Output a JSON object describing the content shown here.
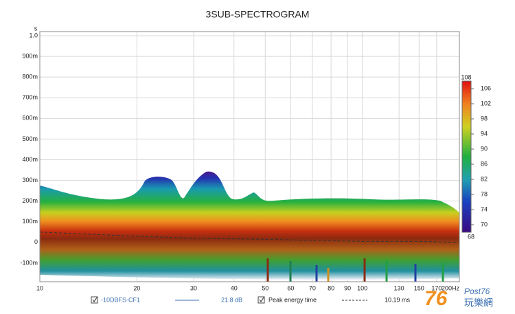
{
  "chart_data": {
    "type": "spectrogram",
    "title": "3SUB-SPECTROGRAM",
    "y_unit": "s",
    "xscale": "log",
    "xlim": [
      10,
      200
    ],
    "xticks": [
      10,
      20,
      30,
      40,
      50,
      60,
      70,
      80,
      90,
      100,
      130,
      150,
      170,
      {
        "value": 200,
        "label": "200Hz"
      }
    ],
    "ylim": [
      -0.19,
      1.02
    ],
    "yticks": [
      {
        "value": 1.0,
        "label": "1.0"
      },
      {
        "value": 0.9,
        "label": "900m"
      },
      {
        "value": 0.8,
        "label": "800m"
      },
      {
        "value": 0.7,
        "label": "700m"
      },
      {
        "value": 0.6,
        "label": "600m"
      },
      {
        "value": 0.5,
        "label": "500m"
      },
      {
        "value": 0.4,
        "label": "400m"
      },
      {
        "value": 0.3,
        "label": "300m"
      },
      {
        "value": 0.2,
        "label": "200m"
      },
      {
        "value": 0.1,
        "label": "100m"
      },
      0,
      {
        "value": -0.1,
        "label": "-100m"
      }
    ],
    "grid": true,
    "clim": [
      68,
      108
    ],
    "cticks": [
      70,
      74,
      78,
      82,
      86,
      90,
      94,
      98,
      102,
      106
    ],
    "series": [
      {
        "name": "Peak energy time",
        "color": "#333333",
        "x": [
          10,
          20,
          30,
          50,
          100,
          150,
          200
        ],
        "values": [
          0.05,
          0.03,
          0.02,
          0.015,
          0.005,
          0.005,
          0.0
        ]
      }
    ],
    "legend": {
      "trace_name": "-10DBFS-CF1",
      "trace_value": "21.8 dB",
      "peak_label": "Peak energy time",
      "peak_value": "10.19 ms"
    },
    "watermark": {
      "number": "76",
      "site": "Post76",
      "chinese": "玩樂網"
    }
  }
}
